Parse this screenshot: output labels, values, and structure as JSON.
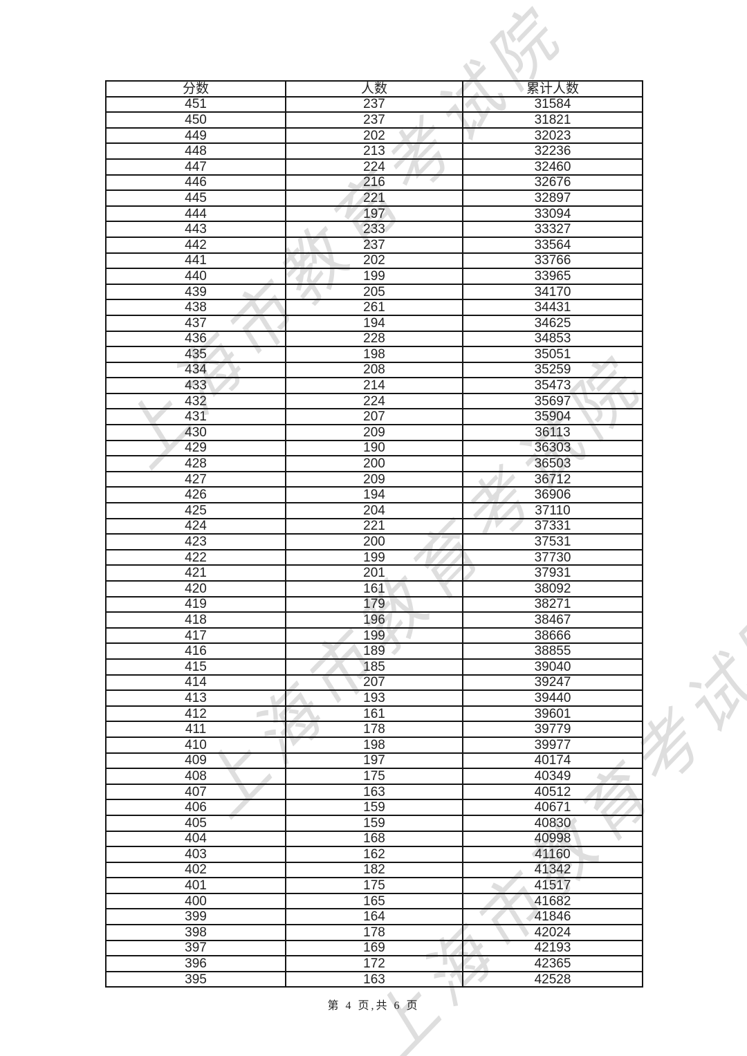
{
  "colors": {
    "background": "#ffffff",
    "border": "#141414",
    "text": "#222222",
    "watermark": "rgba(0,0,0,0.13)"
  },
  "watermark": {
    "text": "上海市教育考试院"
  },
  "table": {
    "headers": [
      "分数",
      "人数",
      "累计人数"
    ],
    "rows": [
      [
        451,
        237,
        31584
      ],
      [
        450,
        237,
        31821
      ],
      [
        449,
        202,
        32023
      ],
      [
        448,
        213,
        32236
      ],
      [
        447,
        224,
        32460
      ],
      [
        446,
        216,
        32676
      ],
      [
        445,
        221,
        32897
      ],
      [
        444,
        197,
        33094
      ],
      [
        443,
        233,
        33327
      ],
      [
        442,
        237,
        33564
      ],
      [
        441,
        202,
        33766
      ],
      [
        440,
        199,
        33965
      ],
      [
        439,
        205,
        34170
      ],
      [
        438,
        261,
        34431
      ],
      [
        437,
        194,
        34625
      ],
      [
        436,
        228,
        34853
      ],
      [
        435,
        198,
        35051
      ],
      [
        434,
        208,
        35259
      ],
      [
        433,
        214,
        35473
      ],
      [
        432,
        224,
        35697
      ],
      [
        431,
        207,
        35904
      ],
      [
        430,
        209,
        36113
      ],
      [
        429,
        190,
        36303
      ],
      [
        428,
        200,
        36503
      ],
      [
        427,
        209,
        36712
      ],
      [
        426,
        194,
        36906
      ],
      [
        425,
        204,
        37110
      ],
      [
        424,
        221,
        37331
      ],
      [
        423,
        200,
        37531
      ],
      [
        422,
        199,
        37730
      ],
      [
        421,
        201,
        37931
      ],
      [
        420,
        161,
        38092
      ],
      [
        419,
        179,
        38271
      ],
      [
        418,
        196,
        38467
      ],
      [
        417,
        199,
        38666
      ],
      [
        416,
        189,
        38855
      ],
      [
        415,
        185,
        39040
      ],
      [
        414,
        207,
        39247
      ],
      [
        413,
        193,
        39440
      ],
      [
        412,
        161,
        39601
      ],
      [
        411,
        178,
        39779
      ],
      [
        410,
        198,
        39977
      ],
      [
        409,
        197,
        40174
      ],
      [
        408,
        175,
        40349
      ],
      [
        407,
        163,
        40512
      ],
      [
        406,
        159,
        40671
      ],
      [
        405,
        159,
        40830
      ],
      [
        404,
        168,
        40998
      ],
      [
        403,
        162,
        41160
      ],
      [
        402,
        182,
        41342
      ],
      [
        401,
        175,
        41517
      ],
      [
        400,
        165,
        41682
      ],
      [
        399,
        164,
        41846
      ],
      [
        398,
        178,
        42024
      ],
      [
        397,
        169,
        42193
      ],
      [
        396,
        172,
        42365
      ],
      [
        395,
        163,
        42528
      ]
    ]
  },
  "footer": {
    "page_indicator": "第 4 页,共 6 页"
  }
}
